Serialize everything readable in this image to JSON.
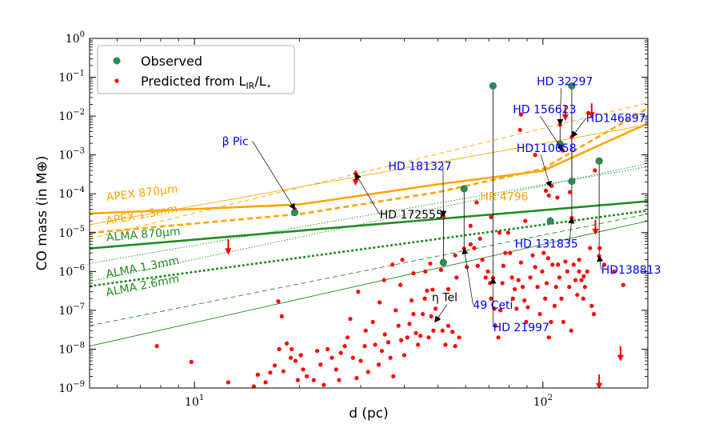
{
  "chart_data": {
    "type": "scatter",
    "xlabel": "d (pc)",
    "ylabel": "CO mass (in M⊕)",
    "xscale": "log",
    "yscale": "log",
    "xlim": [
      5,
      200
    ],
    "ylim": [
      1e-09,
      1
    ],
    "x_ticks": [
      {
        "base": "10",
        "exp": "1",
        "value": 10
      },
      {
        "base": "10",
        "exp": "2",
        "value": 100
      }
    ],
    "y_ticks": [
      {
        "base": "10",
        "exp": "0",
        "value": 1
      },
      {
        "base": "10",
        "exp": "−1",
        "value": 0.1
      },
      {
        "base": "10",
        "exp": "−2",
        "value": 0.01
      },
      {
        "base": "10",
        "exp": "−3",
        "value": 0.001
      },
      {
        "base": "10",
        "exp": "−4",
        "value": 0.0001
      },
      {
        "base": "10",
        "exp": "−5",
        "value": 1e-05
      },
      {
        "base": "10",
        "exp": "−6",
        "value": 1e-06
      },
      {
        "base": "10",
        "exp": "−7",
        "value": 1e-07
      },
      {
        "base": "10",
        "exp": "−8",
        "value": 1e-08
      },
      {
        "base": "10",
        "exp": "−9",
        "value": 1e-09
      }
    ],
    "legend": {
      "placement": "top-left",
      "entries": [
        {
          "label": "Observed",
          "color": "#2e8b57"
        },
        {
          "label": "Predicted from L",
          "sub": "IR",
          "label2": "/L",
          "sub2": "⋆",
          "color": "#ff0000"
        }
      ]
    },
    "colors": {
      "observed": "#2e8b57",
      "predicted": "#ff0000",
      "apex": "#ffa500",
      "alma": "#228b22",
      "label_blue": "#0000ff"
    },
    "sensitivity_lines": [
      {
        "name": "APEX 870μm",
        "color": "#ffa500",
        "style": "solid",
        "width": 2.6,
        "points": [
          [
            5,
            3.1e-05
          ],
          [
            20,
            5.3e-05
          ],
          [
            50,
            0.000175
          ],
          [
            100,
            0.00039
          ],
          [
            200,
            0.0065
          ]
        ]
      },
      {
        "name": "APEX 1.3mm",
        "color": "#ffa500",
        "style": "dashed",
        "width": 2.6,
        "points": [
          [
            5,
            9.8e-06
          ],
          [
            20,
            3e-05
          ],
          [
            50,
            0.00011
          ],
          [
            100,
            0.00044
          ],
          [
            200,
            0.016
          ]
        ]
      },
      {
        "name": "",
        "color": "#ffa500",
        "style": "solid",
        "width": 0.9,
        "points": [
          [
            5,
            1.6e-05
          ],
          [
            200,
            0.006
          ]
        ]
      },
      {
        "name": "",
        "color": "#ffa500",
        "style": "dashed",
        "width": 0.9,
        "points": [
          [
            5,
            7e-06
          ],
          [
            200,
            0.022
          ]
        ]
      },
      {
        "name": "ALMA 870μm",
        "color": "#228b22",
        "style": "solid",
        "width": 2.6,
        "points": [
          [
            5,
            3.9e-06
          ],
          [
            200,
            6.4e-05
          ]
        ]
      },
      {
        "name": "ALMA 1.3mm",
        "color": "#228b22",
        "style": "dotted",
        "width": 2.6,
        "points": [
          [
            5,
            4.2e-07
          ],
          [
            200,
            3.7e-05
          ]
        ]
      },
      {
        "name": "ALMA 2.6mm",
        "color": "#228b22",
        "style": "dotted",
        "width": 0.9,
        "points": [
          [
            5,
            5.5e-07
          ],
          [
            200,
            0.0006
          ]
        ]
      },
      {
        "name": "",
        "color": "#228b22",
        "style": "dotted",
        "width": 0.9,
        "points": [
          [
            5,
            1.6e-06
          ],
          [
            200,
            0.0005
          ]
        ]
      },
      {
        "name": "",
        "color": "#228b22",
        "style": "dashed",
        "width": 0.9,
        "points": [
          [
            5,
            4e-08
          ],
          [
            200,
            3e-05
          ]
        ]
      },
      {
        "name": "",
        "color": "#228b22",
        "style": "solid",
        "width": 0.9,
        "points": [
          [
            5,
            1.2e-08
          ],
          [
            200,
            2e-05
          ]
        ]
      }
    ],
    "line_labels": [
      {
        "text": "APEX 870μm",
        "x": 5.6,
        "y": 6.5e-05,
        "angle": -7,
        "color": "#ffa500"
      },
      {
        "text": "APEX 1.3mm",
        "x": 5.6,
        "y": 1.6e-05,
        "angle": -10,
        "color": "#ffa500"
      },
      {
        "text": "ALMA 870μm",
        "x": 5.6,
        "y": 6e-06,
        "angle": -5,
        "color": "#228b22"
      },
      {
        "text": "ALMA 1.3mm",
        "x": 5.6,
        "y": 6.8e-07,
        "angle": -11,
        "color": "#228b22"
      },
      {
        "text": "ALMA 2.6mm",
        "x": 5.6,
        "y": 2.3e-07,
        "angle": -11,
        "color": "#228b22"
      }
    ],
    "observed": [
      {
        "name": "β Pic",
        "x": 19.4,
        "y": 3.3e-05
      },
      {
        "name": "HD 181327",
        "x": 51.8,
        "y": 1.7e-06
      },
      {
        "name": "49 Ceti",
        "x": 59.4,
        "y": 0.000135
      },
      {
        "name": "HD 21997",
        "x": 71.9,
        "y": 0.06
      },
      {
        "name": "HD 131835",
        "x": 105,
        "y": 2e-05
      },
      {
        "name": "HD 156623",
        "x": 112,
        "y": 0.0019
      },
      {
        "name": "HD 32297",
        "x": 121,
        "y": 0.06
      },
      {
        "name": "HD110058",
        "x": 121,
        "y": 0.00021
      },
      {
        "name": "HD138813",
        "x": 145,
        "y": 0.0007
      }
    ],
    "predicted_observed": [
      {
        "name": "β Pic",
        "x": 19.4,
        "y": 4e-05
      },
      {
        "name": "HD 181327",
        "x": 51.8,
        "y": 2.6e-05
      },
      {
        "name": "49 Ceti",
        "x": 59.4,
        "y": 3.9e-06
      },
      {
        "name": "HD 21997",
        "x": 71.9,
        "y": 6.8e-07
      },
      {
        "name": "HD 131835",
        "x": 105,
        "y": 2.2e-05
      },
      {
        "name": "HD 156623",
        "x": 112,
        "y": 0.006
      },
      {
        "name": "HD146897",
        "x": 114,
        "y": 0.0013
      },
      {
        "name": "HD 32297",
        "x": 121,
        "y": 2.4e-05
      },
      {
        "name": "HD110058",
        "x": 121,
        "y": 0.0029
      },
      {
        "name": "HD138813",
        "x": 145,
        "y": 2.5e-06
      },
      {
        "name": "HD 172555",
        "x": 29.0,
        "y": 0.00033
      }
    ],
    "predicted": [
      [
        7.8,
        1.2e-08
      ],
      [
        9.8,
        4.7e-09
      ],
      [
        12.5,
        1.4e-09
      ],
      [
        14.8,
        1.1e-09
      ],
      [
        15.2,
        2.2e-09
      ],
      [
        16.0,
        1.4e-09
      ],
      [
        16.5,
        2.5e-09
      ],
      [
        17.0,
        3.8e-09
      ],
      [
        17.5,
        1e-08
      ],
      [
        18.0,
        2.7e-09
      ],
      [
        17.4,
        1.7e-07
      ],
      [
        19.0,
        1e-08
      ],
      [
        19.5,
        5e-09
      ],
      [
        20.2,
        7e-09
      ],
      [
        21.0,
        2e-09
      ],
      [
        20.5,
        3e-09
      ],
      [
        22.0,
        1.6e-09
      ],
      [
        22.5,
        9e-09
      ],
      [
        23.0,
        4e-09
      ],
      [
        23.5,
        1.2e-09
      ],
      [
        24.1,
        1e-08
      ],
      [
        24.8,
        6e-09
      ],
      [
        25.5,
        3e-09
      ],
      [
        26.0,
        1.6e-09
      ],
      [
        26.3,
        8e-09
      ],
      [
        17.8,
        7e-08
      ],
      [
        18.4,
        1.4e-08
      ],
      [
        18.9,
        6e-09
      ],
      [
        19.8,
        1.6e-09
      ],
      [
        27.5,
        2e-08
      ],
      [
        28.5,
        6e-09
      ],
      [
        29.2,
        1.8e-09
      ],
      [
        30.0,
        5e-09
      ],
      [
        30.8,
        1.2e-08
      ],
      [
        31.5,
        2.6e-09
      ],
      [
        32.5,
        5e-08
      ],
      [
        33.0,
        1.3e-08
      ],
      [
        33.8,
        4e-09
      ],
      [
        34.5,
        9e-09
      ],
      [
        35.2,
        2.4e-08
      ],
      [
        36.0,
        1.5e-08
      ],
      [
        36.5,
        6e-09
      ],
      [
        37.2,
        2e-09
      ],
      [
        37.8,
        1e-07
      ],
      [
        38.5,
        4e-08
      ],
      [
        39.2,
        1.7e-08
      ],
      [
        40.0,
        7e-09
      ],
      [
        40.8,
        2e-08
      ],
      [
        41.4,
        4.5e-08
      ],
      [
        42.0,
        1.8e-07
      ],
      [
        42.5,
        8e-08
      ],
      [
        43.2,
        2.6e-08
      ],
      [
        43.8,
        1.3e-08
      ],
      [
        44.5,
        2.2e-08
      ],
      [
        45.2,
        8e-08
      ],
      [
        45.8,
        2e-07
      ],
      [
        46.5,
        3.2e-07
      ],
      [
        47.0,
        2e-08
      ],
      [
        47.8,
        7e-08
      ],
      [
        48.5,
        3e-08
      ],
      [
        49.2,
        1.1e-07
      ],
      [
        50.0,
        6e-08
      ],
      [
        51.5,
        3e-08
      ],
      [
        52.5,
        1.3e-08
      ],
      [
        53.5,
        4e-08
      ],
      [
        55.0,
        2.8e-08
      ],
      [
        56.0,
        1.2e-08
      ],
      [
        57.5,
        2e-08
      ],
      [
        29.5,
        3e-07
      ],
      [
        37.0,
        1.5e-06
      ],
      [
        35.0,
        6e-07
      ],
      [
        47.5,
        1.6e-06
      ],
      [
        28.0,
        6e-08
      ],
      [
        27.0,
        1.2e-08
      ],
      [
        31.0,
        3e-08
      ],
      [
        34.0,
        1.6e-07
      ],
      [
        39.5,
        2e-06
      ],
      [
        48.2,
        3.4e-07
      ],
      [
        46.0,
        1e-06
      ],
      [
        60.5,
        1.3e-06
      ],
      [
        62.0,
        5e-06
      ],
      [
        63.5,
        4e-06
      ],
      [
        65.0,
        1.4e-06
      ],
      [
        66.0,
        7e-06
      ],
      [
        67.0,
        2e-06
      ],
      [
        68.5,
        7e-07
      ],
      [
        69.5,
        1e-06
      ],
      [
        70.5,
        5e-07
      ],
      [
        71.0,
        2e-07
      ],
      [
        72.5,
        1.1e-07
      ],
      [
        73.0,
        4e-08
      ],
      [
        74.5,
        2e-08
      ],
      [
        75.5,
        1e-07
      ],
      [
        76.5,
        5e-07
      ],
      [
        77.0,
        1.4e-06
      ],
      [
        78.0,
        3e-06
      ],
      [
        79.5,
        1e-05
      ],
      [
        80.5,
        3e-06
      ],
      [
        81.5,
        7e-07
      ],
      [
        82.0,
        2e-07
      ],
      [
        83.0,
        3.5e-07
      ],
      [
        84.0,
        1.1e-07
      ],
      [
        85.0,
        6e-07
      ],
      [
        86.5,
        1.7e-06
      ],
      [
        87.5,
        4e-07
      ],
      [
        88.5,
        1.8e-07
      ],
      [
        89.5,
        5e-08
      ],
      [
        90.5,
        1.2e-07
      ],
      [
        92.0,
        7e-07
      ],
      [
        93.5,
        2.6e-06
      ],
      [
        95.0,
        1.3e-06
      ],
      [
        96.5,
        4e-07
      ],
      [
        98.0,
        8e-08
      ],
      [
        99.5,
        1e-06
      ],
      [
        100.5,
        3e-06
      ],
      [
        101.5,
        2e-07
      ],
      [
        102.5,
        5e-07
      ],
      [
        103.5,
        2.2e-06
      ],
      [
        104.0,
        2e-08
      ],
      [
        105.5,
        5e-08
      ],
      [
        106.5,
        1.5e-06
      ],
      [
        108.0,
        1.3e-07
      ],
      [
        109.0,
        4e-07
      ],
      [
        110.5,
        1.5e-06
      ],
      [
        111.5,
        7e-07
      ],
      [
        113.0,
        2e-07
      ],
      [
        114.5,
        5e-08
      ],
      [
        116.0,
        1.8e-06
      ],
      [
        117.5,
        1e-06
      ],
      [
        119.0,
        4e-07
      ],
      [
        120.5,
        3e-08
      ],
      [
        122.5,
        1.5e-06
      ],
      [
        124.0,
        6e-07
      ],
      [
        125.5,
        2.5e-07
      ],
      [
        127.0,
        1e-06
      ],
      [
        129.0,
        6e-07
      ],
      [
        130.5,
        2e-07
      ],
      [
        132.0,
        4e-07
      ],
      [
        134.0,
        1e-06
      ],
      [
        136.5,
        4e-06
      ],
      [
        138.0,
        1.3e-07
      ],
      [
        140.0,
        8e-08
      ],
      [
        145.5,
        4e-06
      ],
      [
        150.0,
        1.5e-06
      ],
      [
        160.0,
        1e-06
      ],
      [
        170.0,
        4.5e-07
      ],
      [
        64.5,
        6e-05
      ],
      [
        71.0,
        2.5e-05
      ],
      [
        86.0,
        0.0044
      ],
      [
        95.0,
        0.001
      ],
      [
        135.0,
        0.012
      ],
      [
        141.0,
        0.0004
      ],
      [
        104.0,
        9e-05
      ],
      [
        106.0,
        0.00016
      ],
      [
        110.0,
        8e-05
      ],
      [
        119.5,
        0.00011
      ],
      [
        62.0,
        1.5e-05
      ],
      [
        75.0,
        1e-05
      ],
      [
        89.0,
        2e-05
      ],
      [
        102.0,
        0.00012
      ],
      [
        86.5,
        0.011
      ],
      [
        127.0,
        2e-06
      ],
      [
        131.0,
        7.5e-07
      ],
      [
        56.5,
        7e-07
      ],
      [
        53.5,
        3.5e-07
      ],
      [
        51.0,
        1.1e-06
      ],
      [
        42.5,
        9e-07
      ],
      [
        39.0,
        4.5e-07
      ],
      [
        56.0,
        2.6e-06
      ]
    ],
    "upper_limits": [
      {
        "x": 12.5,
        "y": 5e-06
      },
      {
        "x": 29.0,
        "y": 0.0003
      },
      {
        "x": 116.0,
        "y": 0.014
      },
      {
        "x": 138.0,
        "y": 0.016
      },
      {
        "x": 141.5,
        "y": 1.6e-05
      },
      {
        "x": 167.0,
        "y": 9e-09
      },
      {
        "x": 145.0,
        "y": 1.7e-09
      }
    ],
    "annotations": [
      {
        "text": "β Pic",
        "x": 12.0,
        "y": 0.0018,
        "color": "#0000ff",
        "arrow_to": [
          19.4,
          4e-05
        ]
      },
      {
        "text": "HD 181327",
        "x": 36.0,
        "y": 0.00041,
        "color": "#0000ff",
        "arrow_to": [
          51.8,
          2.6e-05
        ]
      },
      {
        "text": "HD 172555",
        "x": 34.0,
        "y": 2.3e-05,
        "color": "#000000",
        "arrow_to": [
          29.0,
          0.00033
        ]
      },
      {
        "text": "HR 4796",
        "x": 66.0,
        "y": 6.8e-05,
        "color": "#ffa500",
        "small": true
      },
      {
        "text": "HD 32297",
        "x": 96.0,
        "y": 0.063,
        "color": "#0000ff",
        "arrow_to": [
          112,
          0.006
        ]
      },
      {
        "text": "HD 156623",
        "x": 82.0,
        "y": 0.012,
        "color": "#0000ff",
        "arrow_to": [
          114,
          0.0013
        ]
      },
      {
        "text": "HD146897",
        "x": 133.0,
        "y": 0.007,
        "color": "#0000ff",
        "arrow_to": [
          121,
          0.0029
        ]
      },
      {
        "text": "HD110058",
        "x": 84.0,
        "y": 0.0012,
        "color": "#0000ff",
        "arrow_to": [
          105,
          0.00015
        ]
      },
      {
        "text": "HD 131835",
        "x": 83.0,
        "y": 4.1e-06,
        "color": "#0000ff",
        "arrow_to": [
          121,
          2.4e-05
        ]
      },
      {
        "text": "HD138813",
        "x": 147.0,
        "y": 8.8e-07,
        "color": "#0000ff",
        "arrow_to": [
          145,
          2.5e-06
        ]
      },
      {
        "text": "49 Ceti",
        "x": 63.0,
        "y": 1.1e-07,
        "color": "#0000ff",
        "arrow_to": [
          59.4,
          3.9e-06
        ]
      },
      {
        "text": "HD 21997",
        "x": 72.0,
        "y": 2.9e-08,
        "color": "#0000ff",
        "arrow_to": [
          71.9,
          6.8e-07
        ]
      },
      {
        "text": "η Tel",
        "x": 48.0,
        "y": 1.7e-07,
        "color": "#000000",
        "arrow_to": [
          49.0,
          5e-08
        ]
      }
    ]
  }
}
